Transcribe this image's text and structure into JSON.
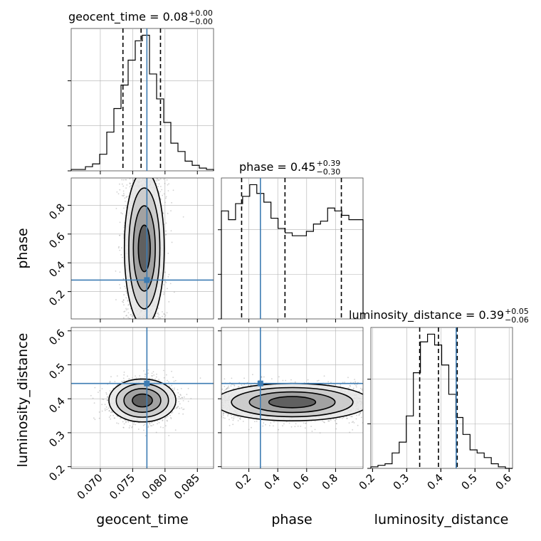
{
  "figure": {
    "variables": [
      "geocent_time",
      "phase",
      "luminosity_distance"
    ],
    "titles": [
      {
        "name": "geocent_time",
        "value": "0.08",
        "plus": "+0.00",
        "minus": "−0.00"
      },
      {
        "name": "phase",
        "value": "0.45",
        "plus": "+0.39",
        "minus": "−0.30"
      },
      {
        "name": "luminosity_distance",
        "value": "0.39",
        "plus": "+0.05",
        "minus": "−0.06"
      }
    ],
    "colors": {
      "truth": "#3d7cb3",
      "hist": "#000000",
      "grid": "#b0b0b0",
      "scatter": "#9a9a9a"
    }
  },
  "chart_data": {
    "type": "corner",
    "parameters": [
      {
        "name": "geocent_time",
        "range": [
          0.0655,
          0.0875
        ],
        "ticks": [
          0.07,
          0.075,
          0.08,
          0.085
        ],
        "tick_labels": [
          "0.070",
          "0.075",
          "0.080",
          "0.085"
        ],
        "truth": 0.0772,
        "quantiles": [
          0.0735,
          0.0763,
          0.0793
        ]
      },
      {
        "name": "phase",
        "range": [
          0.01,
          0.99
        ],
        "ticks": [
          0.2,
          0.4,
          0.6,
          0.8
        ],
        "tick_labels": [
          "0.2",
          "0.4",
          "0.6",
          "0.8"
        ],
        "truth": 0.28,
        "quantiles": [
          0.15,
          0.45,
          0.84
        ]
      },
      {
        "name": "luminosity_distance",
        "range": [
          0.195,
          0.61
        ],
        "ticks": [
          0.2,
          0.3,
          0.4,
          0.5,
          0.6
        ],
        "tick_labels": [
          "0.2",
          "0.3",
          "0.4",
          "0.5",
          "0.6"
        ],
        "truth": 0.445,
        "quantiles": [
          0.338,
          0.393,
          0.448
        ]
      }
    ],
    "histograms": [
      {
        "param": "geocent_time",
        "edges_start": 0.0655,
        "bin_width": 0.0011,
        "counts": [
          1,
          1,
          3,
          5,
          12,
          28,
          45,
          62,
          80,
          94,
          98,
          70,
          52,
          35,
          20,
          14,
          7,
          4,
          2,
          1
        ]
      },
      {
        "param": "phase",
        "edges_start": 0.01,
        "bin_width": 0.049,
        "counts": [
          74,
          68,
          79,
          84,
          92,
          86,
          80,
          69,
          62,
          59,
          57,
          57,
          60,
          65,
          67,
          76,
          74,
          71,
          68,
          68
        ]
      },
      {
        "param": "luminosity_distance",
        "edges_start": 0.195,
        "bin_width": 0.02075,
        "counts": [
          1,
          2,
          3,
          10,
          17,
          34,
          62,
          82,
          87,
          80,
          67,
          48,
          33,
          22,
          12,
          10,
          7,
          3,
          1,
          0
        ]
      }
    ],
    "joint": [
      {
        "x": "geocent_time",
        "y": "phase",
        "center": [
          0.0768,
          0.5
        ],
        "spread": [
          0.0028,
          0.55
        ]
      },
      {
        "x": "geocent_time",
        "y": "luminosity_distance",
        "center": [
          0.0765,
          0.395
        ],
        "spread": [
          0.0045,
          0.055
        ]
      },
      {
        "x": "phase",
        "y": "luminosity_distance",
        "center": [
          0.5,
          0.39
        ],
        "spread": [
          0.55,
          0.05
        ]
      }
    ]
  }
}
